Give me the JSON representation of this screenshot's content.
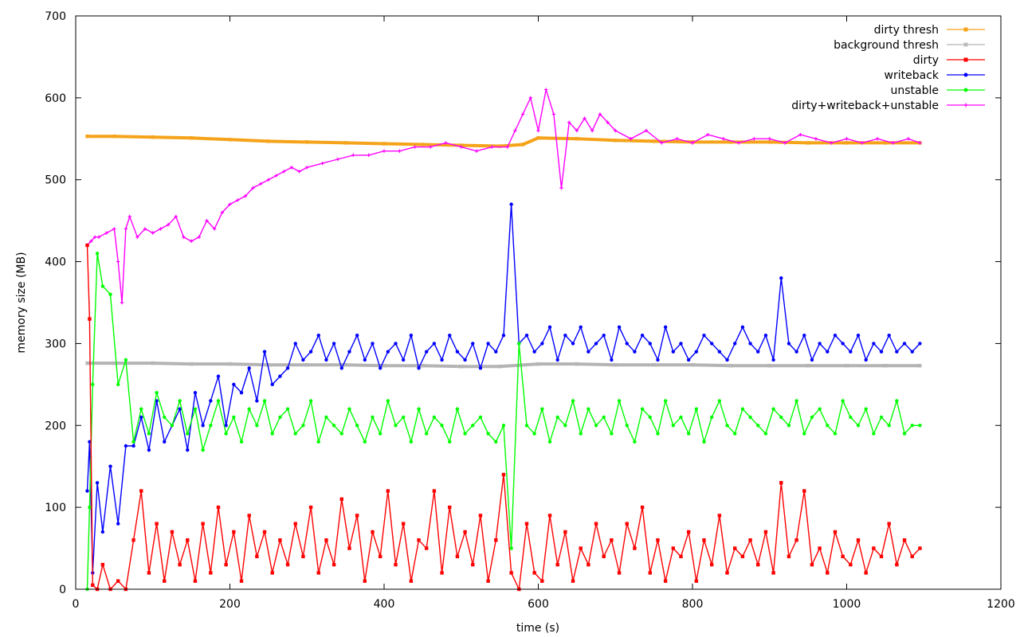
{
  "chart_data": {
    "type": "line",
    "title": "",
    "xlabel": "time (s)",
    "ylabel": "memory size (MB)",
    "xlim": [
      0,
      1200
    ],
    "ylim": [
      0,
      700
    ],
    "xticks": [
      0,
      200,
      400,
      600,
      800,
      1000,
      1200
    ],
    "yticks": [
      0,
      100,
      200,
      300,
      400,
      500,
      600,
      700
    ],
    "grid": false,
    "legend_position": "top-right",
    "series": [
      {
        "name": "dirty thresh",
        "color": "#f5a31a",
        "marker": "square",
        "x": [
          15,
          50,
          100,
          150,
          200,
          250,
          300,
          350,
          400,
          450,
          500,
          550,
          580,
          600,
          650,
          700,
          750,
          800,
          850,
          900,
          950,
          1000,
          1050,
          1095
        ],
        "y": [
          553,
          553,
          552,
          551,
          549,
          547,
          546,
          545,
          544,
          543,
          542,
          541,
          543,
          551,
          550,
          548,
          547,
          546,
          546,
          546,
          545,
          545,
          545,
          545
        ]
      },
      {
        "name": "background thresh",
        "color": "#b4b4b4",
        "marker": "star",
        "x": [
          15,
          50,
          100,
          150,
          200,
          250,
          300,
          350,
          400,
          450,
          500,
          550,
          600,
          650,
          700,
          750,
          800,
          850,
          900,
          950,
          1000,
          1050,
          1095
        ],
        "y": [
          276,
          276,
          276,
          275,
          275,
          274,
          274,
          274,
          273,
          273,
          272,
          272,
          275,
          275,
          274,
          274,
          274,
          273,
          273,
          273,
          273,
          273,
          273
        ]
      },
      {
        "name": "dirty",
        "color": "#ff0000",
        "marker": "square",
        "x": [
          15,
          18,
          22,
          28,
          35,
          45,
          55,
          65,
          75,
          85,
          95,
          105,
          115,
          125,
          135,
          145,
          155,
          165,
          175,
          185,
          195,
          205,
          215,
          225,
          235,
          245,
          255,
          265,
          275,
          285,
          295,
          305,
          315,
          325,
          335,
          345,
          355,
          365,
          375,
          385,
          395,
          405,
          415,
          425,
          435,
          445,
          455,
          465,
          475,
          485,
          495,
          505,
          515,
          525,
          535,
          545,
          555,
          565,
          575,
          585,
          595,
          605,
          615,
          625,
          635,
          645,
          655,
          665,
          675,
          685,
          695,
          705,
          715,
          725,
          735,
          745,
          755,
          765,
          775,
          785,
          795,
          805,
          815,
          825,
          835,
          845,
          855,
          865,
          875,
          885,
          895,
          905,
          915,
          925,
          935,
          945,
          955,
          965,
          975,
          985,
          995,
          1005,
          1015,
          1025,
          1035,
          1045,
          1055,
          1065,
          1075,
          1085,
          1095
        ],
        "y": [
          420,
          330,
          5,
          0,
          30,
          0,
          10,
          0,
          60,
          120,
          20,
          80,
          10,
          70,
          30,
          60,
          10,
          80,
          20,
          100,
          30,
          70,
          10,
          90,
          40,
          70,
          20,
          60,
          30,
          80,
          40,
          100,
          20,
          60,
          30,
          110,
          50,
          90,
          10,
          70,
          40,
          120,
          30,
          80,
          10,
          60,
          50,
          120,
          20,
          100,
          40,
          70,
          30,
          90,
          10,
          60,
          140,
          20,
          0,
          80,
          20,
          10,
          90,
          30,
          70,
          10,
          50,
          30,
          80,
          40,
          60,
          20,
          80,
          50,
          100,
          20,
          60,
          10,
          50,
          40,
          70,
          10,
          60,
          30,
          90,
          20,
          50,
          40,
          60,
          30,
          70,
          20,
          130,
          40,
          60,
          120,
          30,
          50,
          20,
          70,
          40,
          30,
          60,
          20,
          50,
          40,
          80,
          30,
          60,
          40,
          50
        ]
      },
      {
        "name": "writeback",
        "color": "#0000ff",
        "marker": "circle",
        "x": [
          15,
          18,
          22,
          28,
          35,
          45,
          55,
          65,
          75,
          85,
          95,
          105,
          115,
          125,
          135,
          145,
          155,
          165,
          175,
          185,
          195,
          205,
          215,
          225,
          235,
          245,
          255,
          265,
          275,
          285,
          295,
          305,
          315,
          325,
          335,
          345,
          355,
          365,
          375,
          385,
          395,
          405,
          415,
          425,
          435,
          445,
          455,
          465,
          475,
          485,
          495,
          505,
          515,
          525,
          535,
          545,
          555,
          565,
          575,
          585,
          595,
          605,
          615,
          625,
          635,
          645,
          655,
          665,
          675,
          685,
          695,
          705,
          715,
          725,
          735,
          745,
          755,
          765,
          775,
          785,
          795,
          805,
          815,
          825,
          835,
          845,
          855,
          865,
          875,
          885,
          895,
          905,
          915,
          925,
          935,
          945,
          955,
          965,
          975,
          985,
          995,
          1005,
          1015,
          1025,
          1035,
          1045,
          1055,
          1065,
          1075,
          1085,
          1095
        ],
        "y": [
          120,
          180,
          20,
          130,
          70,
          150,
          80,
          175,
          175,
          210,
          170,
          230,
          180,
          200,
          220,
          170,
          240,
          200,
          230,
          260,
          200,
          250,
          240,
          270,
          230,
          290,
          250,
          260,
          270,
          300,
          280,
          290,
          310,
          280,
          300,
          270,
          290,
          310,
          280,
          300,
          270,
          290,
          300,
          280,
          310,
          270,
          290,
          300,
          280,
          310,
          290,
          280,
          300,
          270,
          300,
          290,
          310,
          470,
          300,
          310,
          290,
          300,
          320,
          280,
          310,
          300,
          320,
          290,
          300,
          310,
          280,
          320,
          300,
          290,
          310,
          300,
          280,
          320,
          290,
          300,
          280,
          290,
          310,
          300,
          290,
          280,
          300,
          320,
          300,
          290,
          310,
          280,
          380,
          300,
          290,
          310,
          280,
          300,
          290,
          310,
          300,
          290,
          310,
          280,
          300,
          290,
          310,
          290,
          300,
          290,
          300
        ]
      },
      {
        "name": "unstable",
        "color": "#00ff00",
        "marker": "circle",
        "x": [
          15,
          18,
          22,
          28,
          35,
          45,
          55,
          65,
          75,
          85,
          95,
          105,
          115,
          125,
          135,
          145,
          155,
          165,
          175,
          185,
          195,
          205,
          215,
          225,
          235,
          245,
          255,
          265,
          275,
          285,
          295,
          305,
          315,
          325,
          335,
          345,
          355,
          365,
          375,
          385,
          395,
          405,
          415,
          425,
          435,
          445,
          455,
          465,
          475,
          485,
          495,
          505,
          515,
          525,
          535,
          545,
          555,
          565,
          575,
          585,
          595,
          605,
          615,
          625,
          635,
          645,
          655,
          665,
          675,
          685,
          695,
          705,
          715,
          725,
          735,
          745,
          755,
          765,
          775,
          785,
          795,
          805,
          815,
          825,
          835,
          845,
          855,
          865,
          875,
          885,
          895,
          905,
          915,
          925,
          935,
          945,
          955,
          965,
          975,
          985,
          995,
          1005,
          1015,
          1025,
          1035,
          1045,
          1055,
          1065,
          1075,
          1085,
          1095
        ],
        "y": [
          0,
          100,
          250,
          410,
          370,
          360,
          250,
          280,
          180,
          220,
          190,
          240,
          210,
          200,
          230,
          190,
          220,
          170,
          200,
          230,
          190,
          210,
          180,
          220,
          200,
          230,
          190,
          210,
          220,
          190,
          200,
          230,
          180,
          210,
          200,
          190,
          220,
          200,
          180,
          210,
          190,
          230,
          200,
          210,
          180,
          220,
          190,
          210,
          200,
          180,
          220,
          190,
          200,
          210,
          190,
          180,
          200,
          50,
          300,
          200,
          190,
          220,
          180,
          210,
          200,
          230,
          190,
          220,
          200,
          210,
          190,
          230,
          200,
          180,
          220,
          210,
          190,
          230,
          200,
          210,
          190,
          220,
          180,
          210,
          230,
          200,
          190,
          220,
          210,
          200,
          190,
          220,
          210,
          200,
          230,
          190,
          210,
          220,
          200,
          190,
          230,
          210,
          200,
          220,
          190,
          210,
          200,
          230,
          190,
          200,
          200
        ]
      },
      {
        "name": "dirty+writeback+unstable",
        "color": "#ff00ff",
        "marker": "plus",
        "x": [
          15,
          20,
          25,
          30,
          40,
          50,
          55,
          60,
          65,
          70,
          80,
          90,
          100,
          110,
          120,
          130,
          140,
          150,
          160,
          170,
          180,
          190,
          200,
          210,
          220,
          230,
          240,
          250,
          260,
          270,
          280,
          290,
          300,
          320,
          340,
          360,
          380,
          400,
          420,
          440,
          460,
          480,
          500,
          520,
          540,
          560,
          570,
          580,
          590,
          600,
          610,
          620,
          630,
          640,
          650,
          660,
          670,
          680,
          690,
          700,
          720,
          740,
          760,
          780,
          800,
          820,
          840,
          860,
          880,
          900,
          920,
          940,
          960,
          980,
          1000,
          1020,
          1040,
          1060,
          1080,
          1095
        ],
        "y": [
          420,
          425,
          430,
          430,
          435,
          440,
          400,
          350,
          440,
          455,
          430,
          440,
          435,
          440,
          445,
          455,
          430,
          425,
          430,
          450,
          440,
          460,
          470,
          475,
          480,
          490,
          495,
          500,
          505,
          510,
          515,
          510,
          515,
          520,
          525,
          530,
          530,
          535,
          535,
          540,
          540,
          545,
          540,
          535,
          540,
          540,
          560,
          580,
          600,
          560,
          610,
          580,
          490,
          570,
          560,
          575,
          560,
          580,
          570,
          560,
          550,
          560,
          545,
          550,
          545,
          555,
          550,
          545,
          550,
          550,
          545,
          555,
          550,
          545,
          550,
          545,
          550,
          545,
          550,
          545
        ]
      }
    ]
  }
}
